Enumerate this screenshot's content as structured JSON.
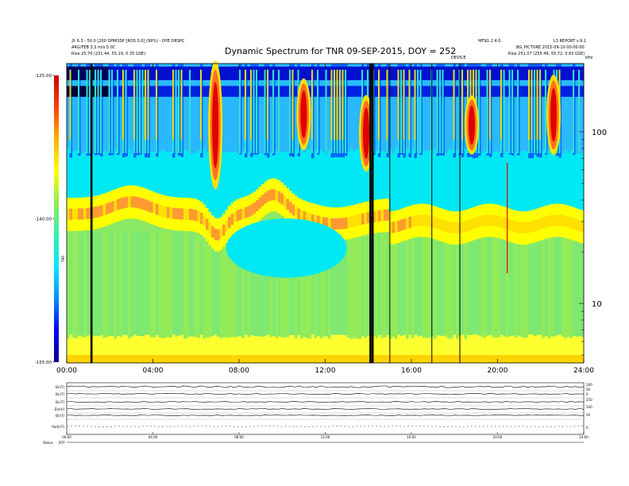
{
  "header": {
    "left_line1": "2t 6.3 - 50.0 [200 SPMISSP [ROS 0.0] (99%) - DYE ORSPC",
    "left_line2": "ARG/FEB 3.3 m/s 5.0C",
    "left_line3": "Rise   25.70 (231.44, 55.19, 0.35 GSE)",
    "right_top_a": "MFSG 2.4.0",
    "right_top_b": "L3 REPORT v.9.1",
    "right_line2": "BG_PICTURE 2015-09-10 00:00:00",
    "right_line3": "Rise   251.07 (255.46, 55.72, 0.63 GSE)",
    "mid_label": "DEVICE",
    "corner_label": "kHz"
  },
  "chart_data": {
    "type": "heatmap",
    "title": "Dynamic Spectrum for TNR 09-SEP-2015, DOY = 252",
    "x": {
      "unit": "UT hours",
      "range": [
        0,
        24
      ],
      "ticks": [
        0,
        4,
        8,
        12,
        16,
        20,
        24
      ],
      "tick_labels": [
        "00:00",
        "04:00",
        "08:00",
        "12:00",
        "16:00",
        "20:00",
        "24:00"
      ]
    },
    "y_right": {
      "unit": "kHz",
      "scale": "log",
      "range": [
        4.5,
        250
      ],
      "ticks": [
        10,
        100
      ],
      "tick_labels": [
        "10",
        "100"
      ]
    },
    "colorbar": {
      "label": "TNR",
      "range_db": [
        -155,
        -125
      ],
      "ticks": [
        -125,
        -140,
        -155
      ],
      "tick_labels": [
        "-125.00",
        "-140.00",
        "-155.00"
      ],
      "colors": [
        "#00008c",
        "#0000ff",
        "#0090ff",
        "#00e8ff",
        "#30f0b0",
        "#90ee50",
        "#ffff00",
        "#ffb000",
        "#ff4000",
        "#c80000"
      ]
    },
    "background_bands": [
      {
        "f_low": 4.5,
        "f_high": 6,
        "level": "yellow"
      },
      {
        "f_low": 6,
        "f_high": 28,
        "level": "green"
      },
      {
        "f_low": 28,
        "f_high": 38,
        "level": "yellow-orange ridge"
      },
      {
        "f_low": 38,
        "f_high": 75,
        "level": "cyan"
      },
      {
        "f_low": 75,
        "f_high": 250,
        "level": "blue with bursts"
      }
    ],
    "bursts": [
      {
        "t": 6.9,
        "f_low": 48,
        "f_high": 250,
        "color": "red"
      },
      {
        "t": 11.0,
        "f_low": 80,
        "f_high": 200,
        "color": "red"
      },
      {
        "t": 13.9,
        "f_low": 60,
        "f_high": 160,
        "color": "red"
      },
      {
        "t": 18.8,
        "f_low": 75,
        "f_high": 160,
        "color": "red"
      },
      {
        "t": 22.6,
        "f_low": 75,
        "f_high": 210,
        "color": "red"
      }
    ],
    "data_gaps_hours": [
      1.15,
      14.1,
      14.2,
      15.0,
      16.95,
      18.25
    ],
    "red_marker_hours": [
      20.45
    ]
  },
  "lower_panels": {
    "row_labels": [
      "B(nT)",
      "B(nT)",
      "B(nT)",
      "E(mV)",
      "B(nT)",
      "Rad(nT)"
    ],
    "right_axis_labels": [
      "100",
      "50",
      "0",
      "250",
      "100",
      "50",
      "0"
    ],
    "time_labels": [
      "00:00",
      "04:00",
      "08:00",
      "12:00",
      "16:00",
      "20:00",
      "24:00"
    ],
    "footer_label": "Status",
    "footer_value": "BTP"
  }
}
